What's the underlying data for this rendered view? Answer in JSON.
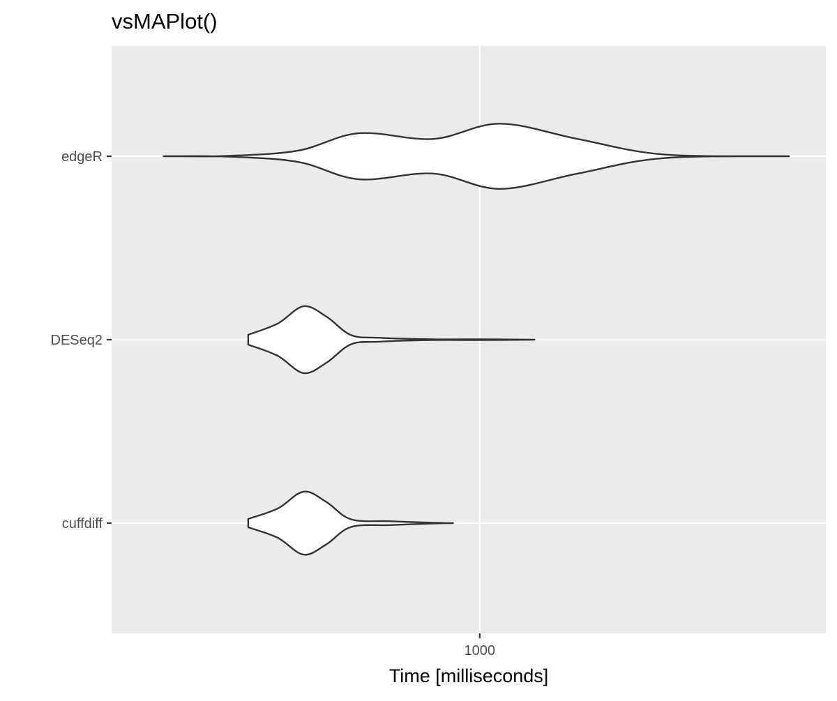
{
  "chart_data": {
    "type": "violin",
    "orientation": "horizontal",
    "title": "vsMAPlot()",
    "subtitle": "",
    "xlabel": "Time [milliseconds]",
    "ylabel": "",
    "x_scale": "log10",
    "xlim": [
      200,
      4500
    ],
    "x_ticks": [
      1000
    ],
    "x_tick_labels": [
      "1000"
    ],
    "categories": [
      "edgeR",
      "DESeq2",
      "cuffdiff"
    ],
    "grid": true,
    "legend": "none",
    "colors": {
      "panel_background": "#ebebeb",
      "grid_line": "#ffffff",
      "violin_fill": "#ffffff",
      "violin_outline": "#333333",
      "tick_label": "#4d4d4d"
    },
    "series": [
      {
        "category": "edgeR",
        "range": [
          220,
          4400
        ],
        "density_profile": [
          [
            220,
            0.0
          ],
          [
            300,
            0.01
          ],
          [
            420,
            0.15
          ],
          [
            560,
            0.6
          ],
          [
            800,
            0.45
          ],
          [
            1100,
            0.85
          ],
          [
            1600,
            0.45
          ],
          [
            2400,
            0.05
          ],
          [
            4400,
            0.0
          ]
        ]
      },
      {
        "category": "DESeq2",
        "range": [
          330,
          1300
        ],
        "density_profile": [
          [
            330,
            0.13
          ],
          [
            380,
            0.42
          ],
          [
            430,
            0.87
          ],
          [
            480,
            0.6
          ],
          [
            540,
            0.12
          ],
          [
            620,
            0.05
          ],
          [
            800,
            0.01
          ],
          [
            1000,
            0.01
          ],
          [
            1300,
            0.0
          ]
        ]
      },
      {
        "category": "cuffdiff",
        "range": [
          330,
          880
        ],
        "density_profile": [
          [
            330,
            0.11
          ],
          [
            380,
            0.38
          ],
          [
            430,
            0.82
          ],
          [
            480,
            0.55
          ],
          [
            540,
            0.1
          ],
          [
            650,
            0.05
          ],
          [
            800,
            0.01
          ],
          [
            880,
            0.0
          ]
        ]
      }
    ]
  }
}
